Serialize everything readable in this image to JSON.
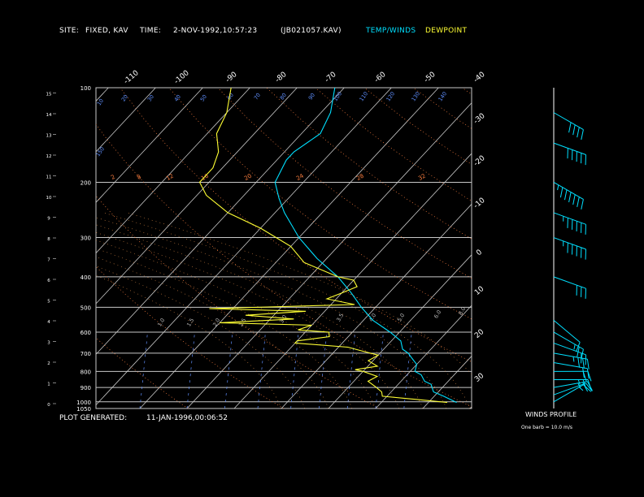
{
  "header": {
    "site_label": "SITE:",
    "site_value": "FIXED, KAV",
    "time_label": "TIME:",
    "time_value": "2-NOV-1992,10:57:23",
    "file_id": "(JB021057.KAV)",
    "legend_temp": "TEMP/WINDS",
    "legend_dew": "DEWPOINT"
  },
  "footer": {
    "plot_label": "PLOT GENERATED:",
    "plot_value": "11-JAN-1996,00:06:52",
    "winds_title": "WINDS PROFILE",
    "winds_scale": "One barb = 10.0 m/s"
  },
  "colors": {
    "background": "#000000",
    "grid": "#c8c8c8",
    "temperature": "#00e0ff",
    "dewpoint": "#ffff33",
    "winds": "#00e0ff",
    "dry_adiabat": "#ff8040",
    "mixing_ratio": "#6090ff",
    "moist_adiabat": "#ffa050"
  },
  "chart_data": {
    "type": "line",
    "xlabel": "",
    "ylabel": "",
    "pressure_levels": [
      100,
      200,
      300,
      400,
      500,
      600,
      700,
      800,
      900,
      1000,
      1050
    ],
    "km_ticks": [
      0,
      1,
      2,
      3,
      4,
      5,
      6,
      7,
      8,
      9,
      10,
      11,
      12,
      13,
      14,
      15
    ],
    "isotherm_top_labels": [
      -110,
      -100,
      -90,
      -80,
      -70,
      -60,
      -50,
      -40
    ],
    "isotherm_right_labels": [
      -30,
      -20,
      -10,
      0,
      10,
      20,
      30
    ],
    "dry_adiabat_labels": [
      "2",
      "8",
      "12",
      "16",
      "20",
      "24",
      "28",
      "32"
    ],
    "mixing_ratio_labels": [
      "10",
      "20",
      "30",
      "40",
      "50",
      "60",
      "70",
      "80",
      "90",
      "100",
      "110",
      "120",
      "130",
      "140",
      "150"
    ],
    "moist_adiabat_labels": [
      "1.0",
      "1.5",
      "2.0",
      "2.5",
      "3.0",
      "3.5",
      "4.0",
      "5.0",
      "6.0",
      "8.0"
    ],
    "series": [
      {
        "name": "TEMP/WINDS",
        "points": [
          [
            1005,
            26
          ],
          [
            960,
            22
          ],
          [
            930,
            19
          ],
          [
            905,
            18
          ],
          [
            880,
            17
          ],
          [
            860,
            15
          ],
          [
            820,
            13
          ],
          [
            800,
            11
          ],
          [
            760,
            10
          ],
          [
            730,
            8
          ],
          [
            700,
            6
          ],
          [
            680,
            4
          ],
          [
            640,
            2
          ],
          [
            600,
            -2
          ],
          [
            550,
            -8
          ],
          [
            500,
            -13
          ],
          [
            450,
            -18
          ],
          [
            400,
            -24
          ],
          [
            350,
            -32
          ],
          [
            300,
            -40
          ],
          [
            250,
            -48
          ],
          [
            225,
            -52
          ],
          [
            200,
            -56
          ],
          [
            170,
            -58
          ],
          [
            160,
            -58
          ],
          [
            140,
            -56
          ],
          [
            120,
            -58
          ],
          [
            100,
            -62
          ]
        ]
      },
      {
        "name": "DEWPOINT",
        "points": [
          [
            1005,
            24
          ],
          [
            980,
            16
          ],
          [
            960,
            9
          ],
          [
            930,
            8
          ],
          [
            900,
            6
          ],
          [
            860,
            3
          ],
          [
            830,
            4
          ],
          [
            800,
            0
          ],
          [
            790,
            -2
          ],
          [
            770,
            2
          ],
          [
            740,
            -1
          ],
          [
            710,
            0
          ],
          [
            690,
            -4
          ],
          [
            670,
            -8
          ],
          [
            650,
            -20
          ],
          [
            640,
            -20
          ],
          [
            620,
            -14
          ],
          [
            600,
            -15
          ],
          [
            590,
            -22
          ],
          [
            570,
            -20
          ],
          [
            560,
            -40
          ],
          [
            545,
            -25
          ],
          [
            530,
            -36
          ],
          [
            515,
            -24
          ],
          [
            505,
            -45
          ],
          [
            490,
            -15
          ],
          [
            470,
            -22
          ],
          [
            450,
            -20
          ],
          [
            430,
            -18
          ],
          [
            410,
            -20
          ],
          [
            400,
            -24
          ],
          [
            360,
            -34
          ],
          [
            320,
            -40
          ],
          [
            280,
            -50
          ],
          [
            250,
            -60
          ],
          [
            220,
            -68
          ],
          [
            200,
            -72
          ],
          [
            180,
            -72
          ],
          [
            160,
            -74
          ],
          [
            140,
            -78
          ],
          [
            120,
            -80
          ],
          [
            100,
            -84
          ]
        ]
      }
    ],
    "winds": [
      {
        "p": 1000,
        "dir": 240,
        "speed": 5
      },
      {
        "p": 950,
        "dir": 250,
        "speed": 10
      },
      {
        "p": 900,
        "dir": 260,
        "speed": 15
      },
      {
        "p": 850,
        "dir": 270,
        "speed": 15
      },
      {
        "p": 800,
        "dir": 270,
        "speed": 20
      },
      {
        "p": 750,
        "dir": 280,
        "speed": 20
      },
      {
        "p": 700,
        "dir": 280,
        "speed": 25
      },
      {
        "p": 650,
        "dir": 290,
        "speed": 20
      },
      {
        "p": 600,
        "dir": 300,
        "speed": 15
      },
      {
        "p": 550,
        "dir": 310,
        "speed": 10
      },
      {
        "p": 400,
        "dir": 290,
        "speed": 30
      },
      {
        "p": 300,
        "dir": 290,
        "speed": 45
      },
      {
        "p": 250,
        "dir": 290,
        "speed": 45
      },
      {
        "p": 200,
        "dir": 300,
        "speed": 55
      },
      {
        "p": 150,
        "dir": 290,
        "speed": 50
      },
      {
        "p": 120,
        "dir": 300,
        "speed": 40
      }
    ]
  }
}
